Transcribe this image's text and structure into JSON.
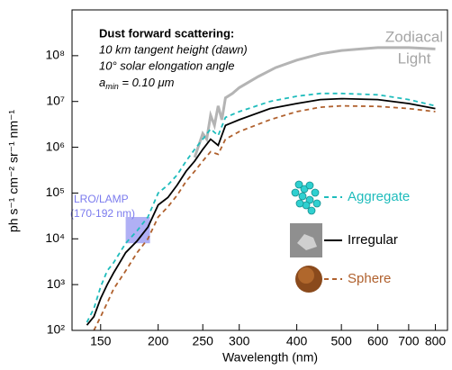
{
  "chart_data": {
    "type": "line",
    "x_label": "Wavelength (nm)",
    "y_label": "ph s⁻¹ cm⁻² sr⁻¹ nm⁻¹",
    "x_scale": "log",
    "y_scale": "log",
    "xlim": [
      130,
      850
    ],
    "ylim": [
      100,
      1000000000
    ],
    "xticks": [
      150,
      200,
      250,
      300,
      400,
      500,
      600,
      700,
      800
    ],
    "yticks": [
      {
        "value": 100,
        "label": "10²"
      },
      {
        "value": 1000,
        "label": "10³"
      },
      {
        "value": 10000,
        "label": "10⁴"
      },
      {
        "value": 100000,
        "label": "10⁵"
      },
      {
        "value": 1000000,
        "label": "10⁶"
      },
      {
        "value": 10000000,
        "label": "10⁷"
      },
      {
        "value": 100000000,
        "label": "10⁸"
      }
    ],
    "annotation": {
      "heading": "Dust forward scattering:",
      "line1": "10 km tangent height (dawn)",
      "line2": "10° solar elongation angle",
      "amin_symbol": "a",
      "amin_sub": "min",
      "amin_rest": " = 0.10 μm"
    },
    "zodiacal_label": [
      "Zodiacal",
      "Light"
    ],
    "lamp_band": {
      "label": [
        "LRO/LAMP",
        "(170-192 nm)"
      ],
      "xlim": [
        170,
        192
      ],
      "ylim": [
        8000,
        30000
      ],
      "color": "#7b7bee"
    },
    "series": [
      {
        "color": "#b4b4b4",
        "width": 3,
        "x": [
          240,
          250,
          255,
          260,
          265,
          270,
          275,
          280,
          290,
          300,
          330,
          360,
          400,
          450,
          500,
          550,
          600,
          700,
          800
        ],
        "values": [
          600000,
          2000000,
          1500000,
          5000000,
          3000000,
          8000000,
          4000000,
          12000000,
          15000000,
          20000000,
          35000000,
          55000000,
          80000000,
          110000000,
          130000000,
          140000000,
          150000000,
          150000000,
          140000000
        ]
      },
      {
        "name": "Aggregate",
        "color": "#1fbcbc",
        "dash": "5,4",
        "x": [
          140,
          145,
          150,
          155,
          160,
          170,
          180,
          190,
          200,
          210,
          220,
          230,
          240,
          250,
          260,
          270,
          280,
          300,
          350,
          400,
          450,
          500,
          600,
          700,
          800
        ],
        "values": [
          150,
          300,
          900,
          2000,
          3000,
          8000,
          15000,
          30000,
          100000,
          150000,
          250000,
          500000,
          900000,
          1500000,
          2500000,
          1800000,
          4500000,
          6000000,
          10000000,
          13000000,
          15000000,
          15000000,
          14000000,
          11000000,
          8000000
        ]
      },
      {
        "name": "Irregular",
        "color": "#000000",
        "x": [
          140,
          145,
          150,
          155,
          160,
          170,
          180,
          190,
          200,
          210,
          220,
          230,
          240,
          250,
          260,
          270,
          280,
          300,
          350,
          400,
          450,
          500,
          600,
          700,
          800
        ],
        "values": [
          130,
          200,
          500,
          1000,
          1800,
          5000,
          9000,
          18000,
          55000,
          80000,
          150000,
          300000,
          500000,
          900000,
          1500000,
          1100000,
          3000000,
          4000000,
          7000000,
          9000000,
          11000000,
          11500000,
          11000000,
          9000000,
          7000000
        ]
      },
      {
        "name": "Sphere",
        "color": "#b0612e",
        "dash": "5,4",
        "x": [
          145,
          150,
          155,
          160,
          170,
          180,
          190,
          200,
          210,
          220,
          230,
          240,
          250,
          260,
          270,
          280,
          300,
          350,
          400,
          450,
          500,
          600,
          700,
          800
        ],
        "values": [
          100,
          200,
          400,
          800,
          2000,
          5000,
          10000,
          30000,
          50000,
          90000,
          180000,
          300000,
          500000,
          800000,
          700000,
          1500000,
          2200000,
          4000000,
          6000000,
          7500000,
          8000000,
          7800000,
          7000000,
          6000000
        ]
      }
    ]
  }
}
